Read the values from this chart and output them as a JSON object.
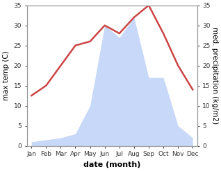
{
  "months": [
    "Jan",
    "Feb",
    "Mar",
    "Apr",
    "May",
    "Jun",
    "Jul",
    "Aug",
    "Sep",
    "Oct",
    "Nov",
    "Dec"
  ],
  "temp": [
    12.5,
    15.0,
    20.0,
    25.0,
    26.0,
    30.0,
    28.0,
    32.0,
    35.0,
    28.0,
    20.0,
    14.0
  ],
  "precip": [
    1.0,
    1.5,
    2.0,
    3.0,
    10.0,
    30.0,
    27.0,
    32.0,
    17.0,
    17.0,
    5.0,
    2.0
  ],
  "temp_color": "#cc4444",
  "precip_fill_color": "#c8d8f8",
  "ylim": [
    0,
    35
  ],
  "yticks": [
    0,
    5,
    10,
    15,
    20,
    25,
    30,
    35
  ],
  "xlabel": "date (month)",
  "ylabel_left": "max temp (C)",
  "ylabel_right": "med. precipitation (kg/m2)",
  "background_color": "#ffffff",
  "spine_color": "#999999",
  "tick_fontsize": 6.5,
  "label_fontsize": 7.5,
  "xlabel_fontsize": 8
}
